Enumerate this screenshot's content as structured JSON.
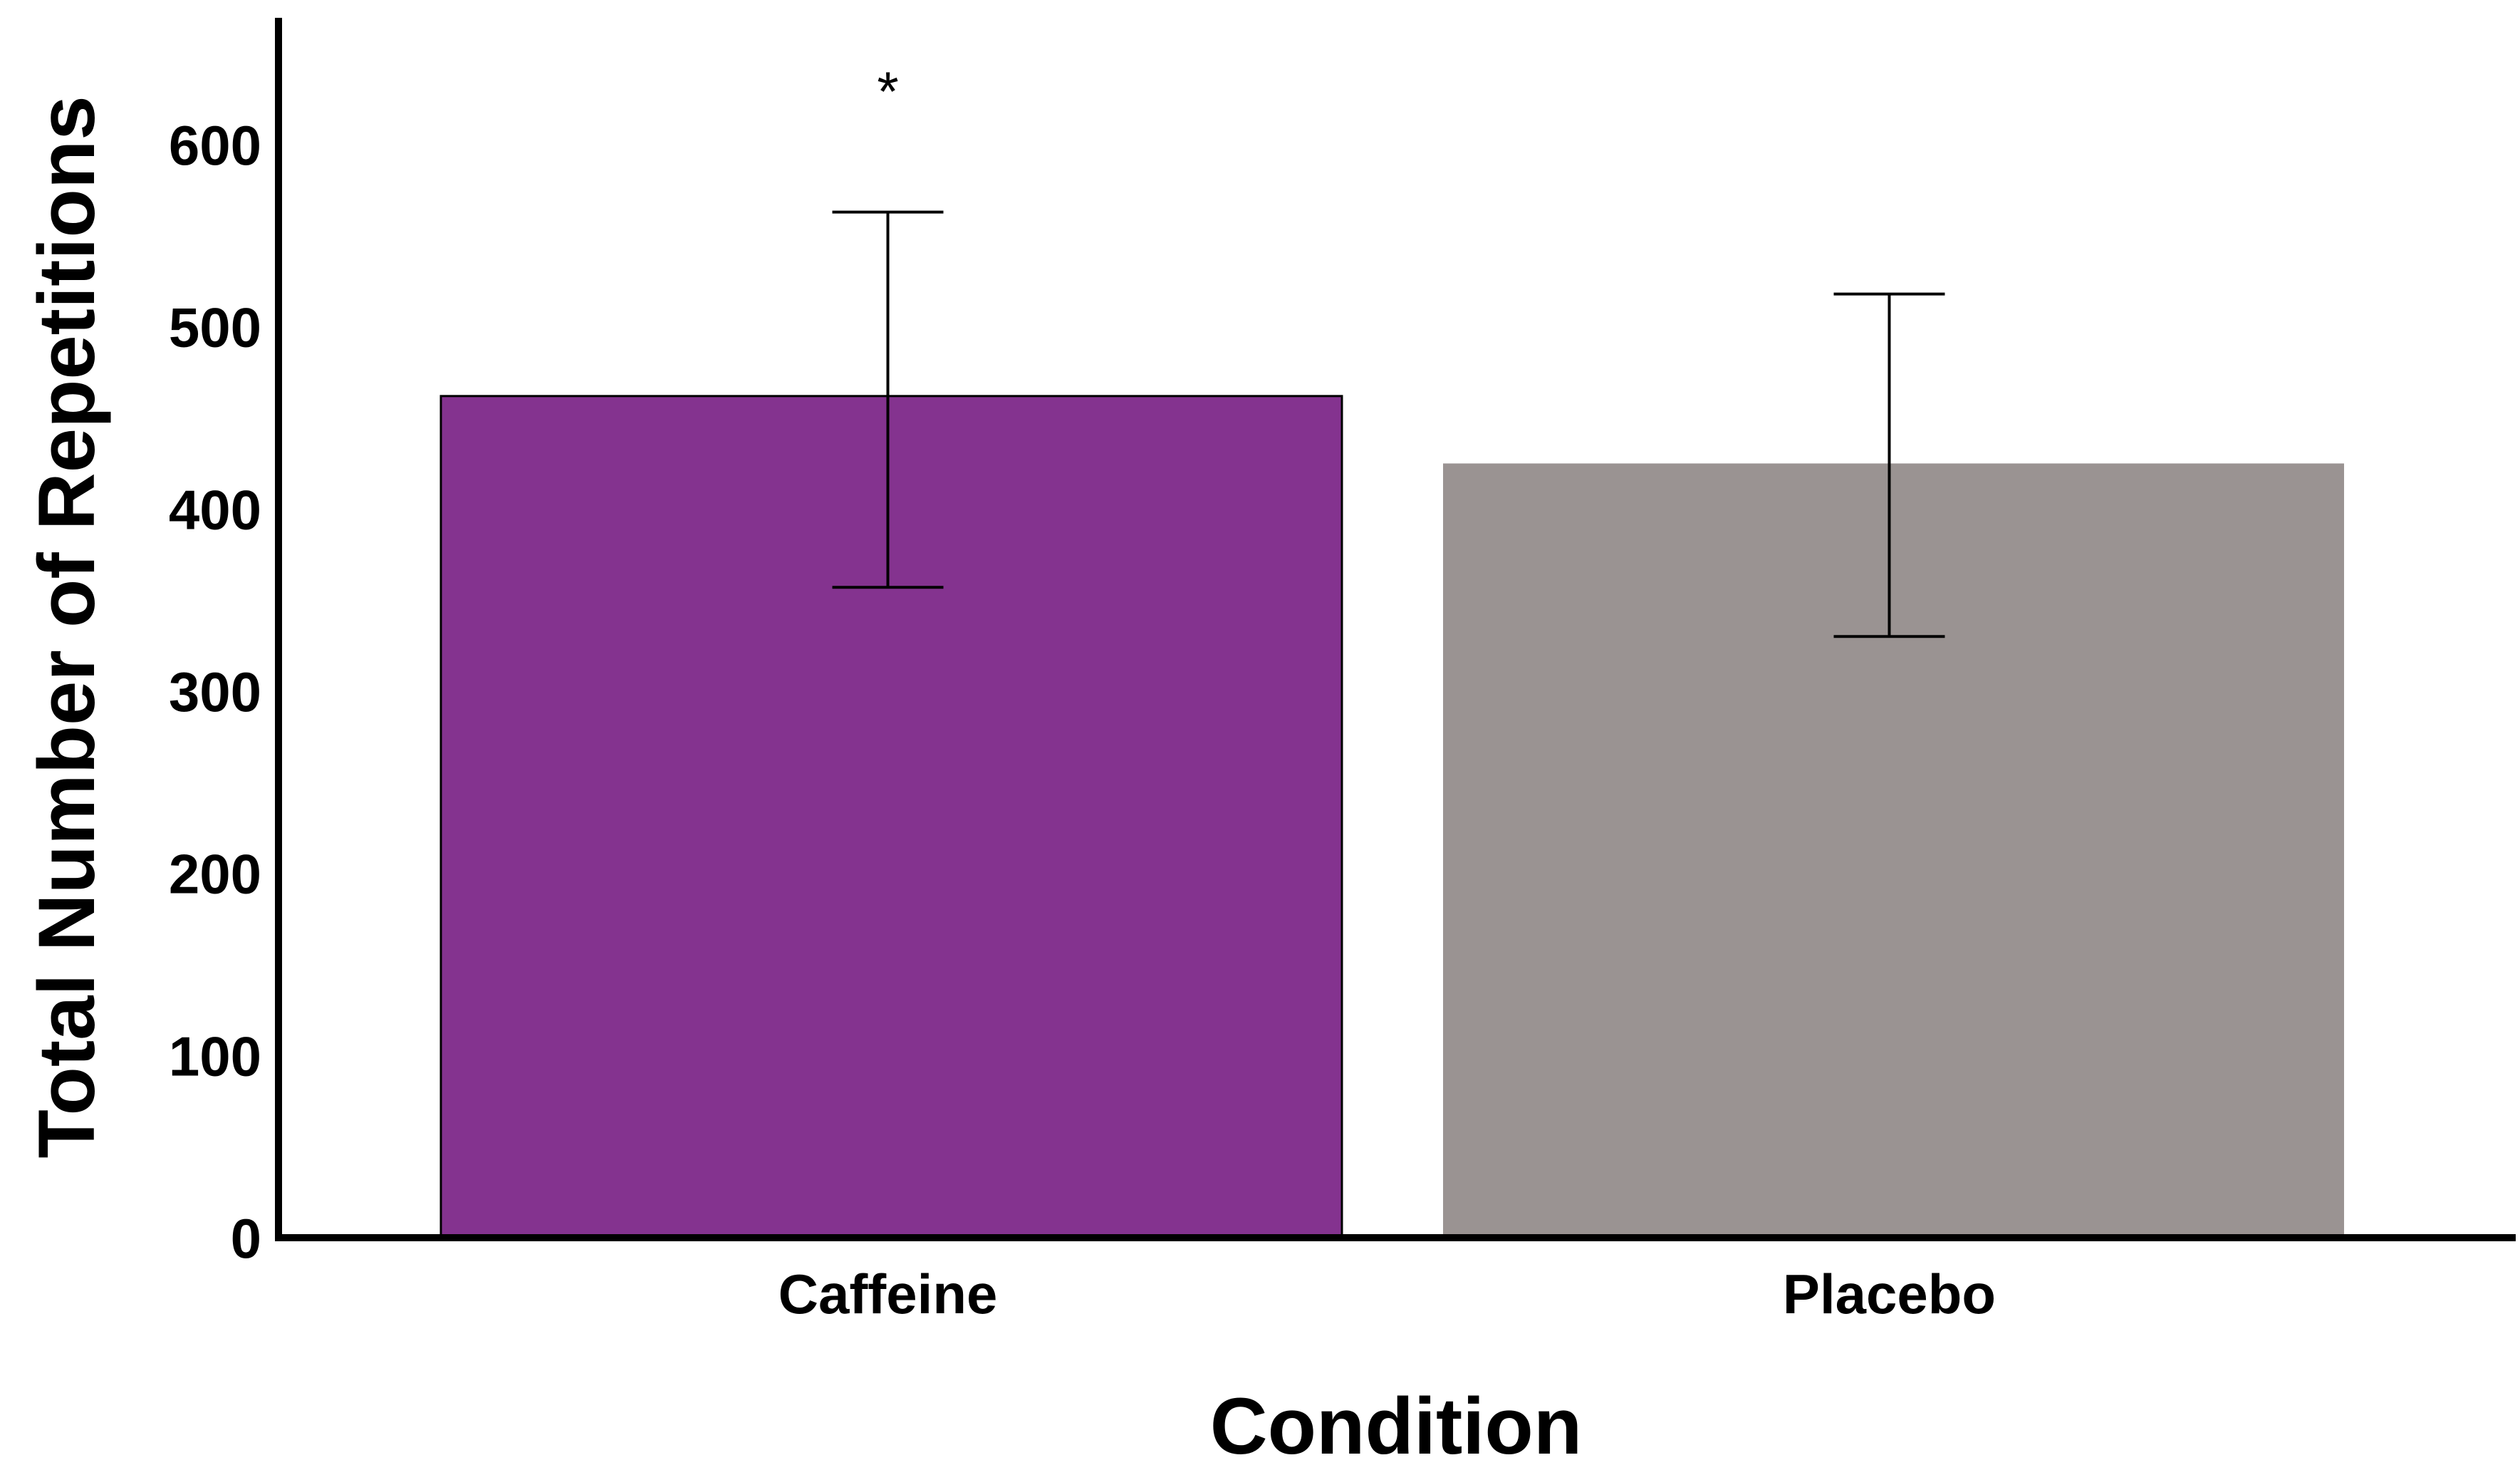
{
  "chart_data": {
    "type": "bar",
    "title": "",
    "xlabel": "Condition",
    "ylabel": "Total Number of Repetitions",
    "categories": [
      "Caffeine",
      "Placebo"
    ],
    "values": [
      462,
      425
    ],
    "error_bars": [
      {
        "lower": 357,
        "upper": 563
      },
      {
        "lower": 330,
        "upper": 518
      }
    ],
    "bar_colors": [
      "#84338f",
      "#9a9392"
    ],
    "yticks": [
      0,
      100,
      200,
      300,
      400,
      500,
      600
    ],
    "ytick_labels": [
      "0",
      "100",
      "200",
      "300",
      "400",
      "500",
      "600"
    ],
    "ylim": [
      0,
      665
    ],
    "grid": false,
    "annotations": [
      {
        "category": "Caffeine",
        "text": "*"
      }
    ]
  }
}
